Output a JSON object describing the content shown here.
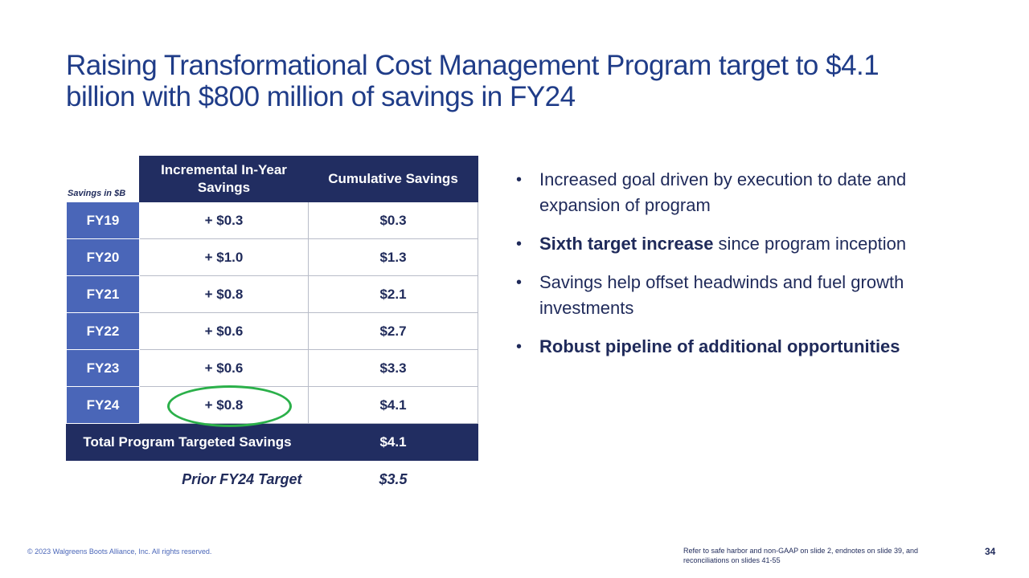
{
  "slide": {
    "title": "Raising Transformational Cost Management Program target to $4.1 billion with $800 million of savings in FY24",
    "units_label": "Savings in $B"
  },
  "table": {
    "headers": [
      "Incremental In-Year Savings",
      "Cumulative Savings"
    ],
    "rows": [
      {
        "year": "FY19",
        "incremental": "+ $0.3",
        "cumulative": "$0.3"
      },
      {
        "year": "FY20",
        "incremental": "+ $1.0",
        "cumulative": "$1.3"
      },
      {
        "year": "FY21",
        "incremental": "+ $0.8",
        "cumulative": "$2.1"
      },
      {
        "year": "FY22",
        "incremental": "+ $0.6",
        "cumulative": "$2.7"
      },
      {
        "year": "FY23",
        "incremental": "+ $0.6",
        "cumulative": "$3.3"
      },
      {
        "year": "FY24",
        "incremental": "+ $0.8",
        "cumulative": "$4.1"
      }
    ],
    "total": {
      "label": "Total Program Targeted Savings",
      "value": "$4.1"
    },
    "prior": {
      "label": "Prior FY24 Target",
      "value": "$3.5"
    },
    "highlight_color": "#2bb04a"
  },
  "bullets": [
    {
      "bold": "",
      "text": "Increased goal driven by execution to date and expansion of program"
    },
    {
      "bold": "Sixth target increase",
      "text": " since program inception"
    },
    {
      "bold": "",
      "text": "Savings help offset headwinds and fuel growth investments"
    },
    {
      "bold": "Robust pipeline of additional opportunities",
      "text": ""
    }
  ],
  "footer": {
    "copyright": "© 2023 Walgreens Boots Alliance, Inc. All rights reserved.",
    "note": "Refer to safe harbor and non-GAAP on slide 2, endnotes on slide 39, and reconciliations on slides 41-55",
    "page_number": "34"
  },
  "colors": {
    "title": "#1f3c88",
    "header_navy": "#212d61",
    "year_blue": "#4a66b8"
  }
}
